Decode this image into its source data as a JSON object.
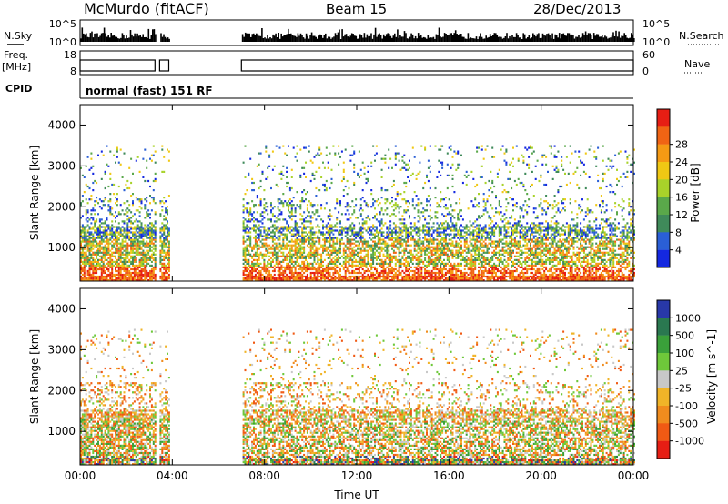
{
  "header": {
    "station": "McMurdo (fitACF)",
    "beam": "Beam 15",
    "date": "28/Dec/2013"
  },
  "noise_panel": {
    "left_label": "N.Sky",
    "right_label": "N.Search",
    "left_ticks": [
      "10^5",
      "10^0"
    ],
    "right_ticks": [
      "10^5",
      "10^0"
    ]
  },
  "freq_panel": {
    "left_label_1": "Freq.",
    "left_label_2": "[MHz]",
    "right_label": "Nave",
    "left_ticks": [
      "18",
      "8"
    ],
    "right_ticks": [
      "60",
      "0"
    ]
  },
  "cpid": {
    "label": "CPID",
    "value": "normal (fast) 151 RF"
  },
  "colors": {
    "power": [
      "#1428e0",
      "#2a5fd6",
      "#3f8a5a",
      "#5aa84a",
      "#a8d22a",
      "#f0c814",
      "#f59a14",
      "#f06414",
      "#e61e14"
    ],
    "velocity": [
      "#2838a8",
      "#2a7850",
      "#3aa03a",
      "#6ec83a",
      "#c8c8c8",
      "#f0b428",
      "#f08c1e",
      "#f05a14",
      "#e61e14"
    ]
  },
  "chart_data": [
    {
      "type": "heatmap",
      "name_text": "power",
      "x_label": "",
      "y_label": "Slant Range [km]",
      "x_ticks": [
        "00:00",
        "04:00",
        "08:00",
        "12:00",
        "16:00",
        "20:00",
        "00:00"
      ],
      "x_range_hours": [
        0,
        24
      ],
      "y_range_km": [
        180,
        4500
      ],
      "y_ticks": [
        1000,
        2000,
        3000,
        4000
      ],
      "colorbar_label": "Power [dB]",
      "colorbar_ticks": [
        "4",
        "8",
        "12",
        "16",
        "20",
        "24",
        "28"
      ],
      "data_gaps_hours": [
        [
          3.25,
          3.45
        ],
        [
          3.85,
          7.0
        ]
      ]
    },
    {
      "type": "heatmap",
      "name_text": "velocity",
      "x_label": "Time UT",
      "y_label": "Slant Range [km]",
      "x_ticks": [
        "00:00",
        "04:00",
        "08:00",
        "12:00",
        "16:00",
        "20:00",
        "00:00"
      ],
      "x_range_hours": [
        0,
        24
      ],
      "y_range_km": [
        180,
        4500
      ],
      "y_ticks": [
        1000,
        2000,
        3000,
        4000
      ],
      "colorbar_label": "Velocity [m s^-1]",
      "colorbar_ticks": [
        "1000",
        "500",
        "100",
        "25",
        "-25",
        "-100",
        "-500",
        "-1000"
      ],
      "data_gaps_hours": [
        [
          3.25,
          3.45
        ],
        [
          3.85,
          7.0
        ]
      ]
    }
  ]
}
